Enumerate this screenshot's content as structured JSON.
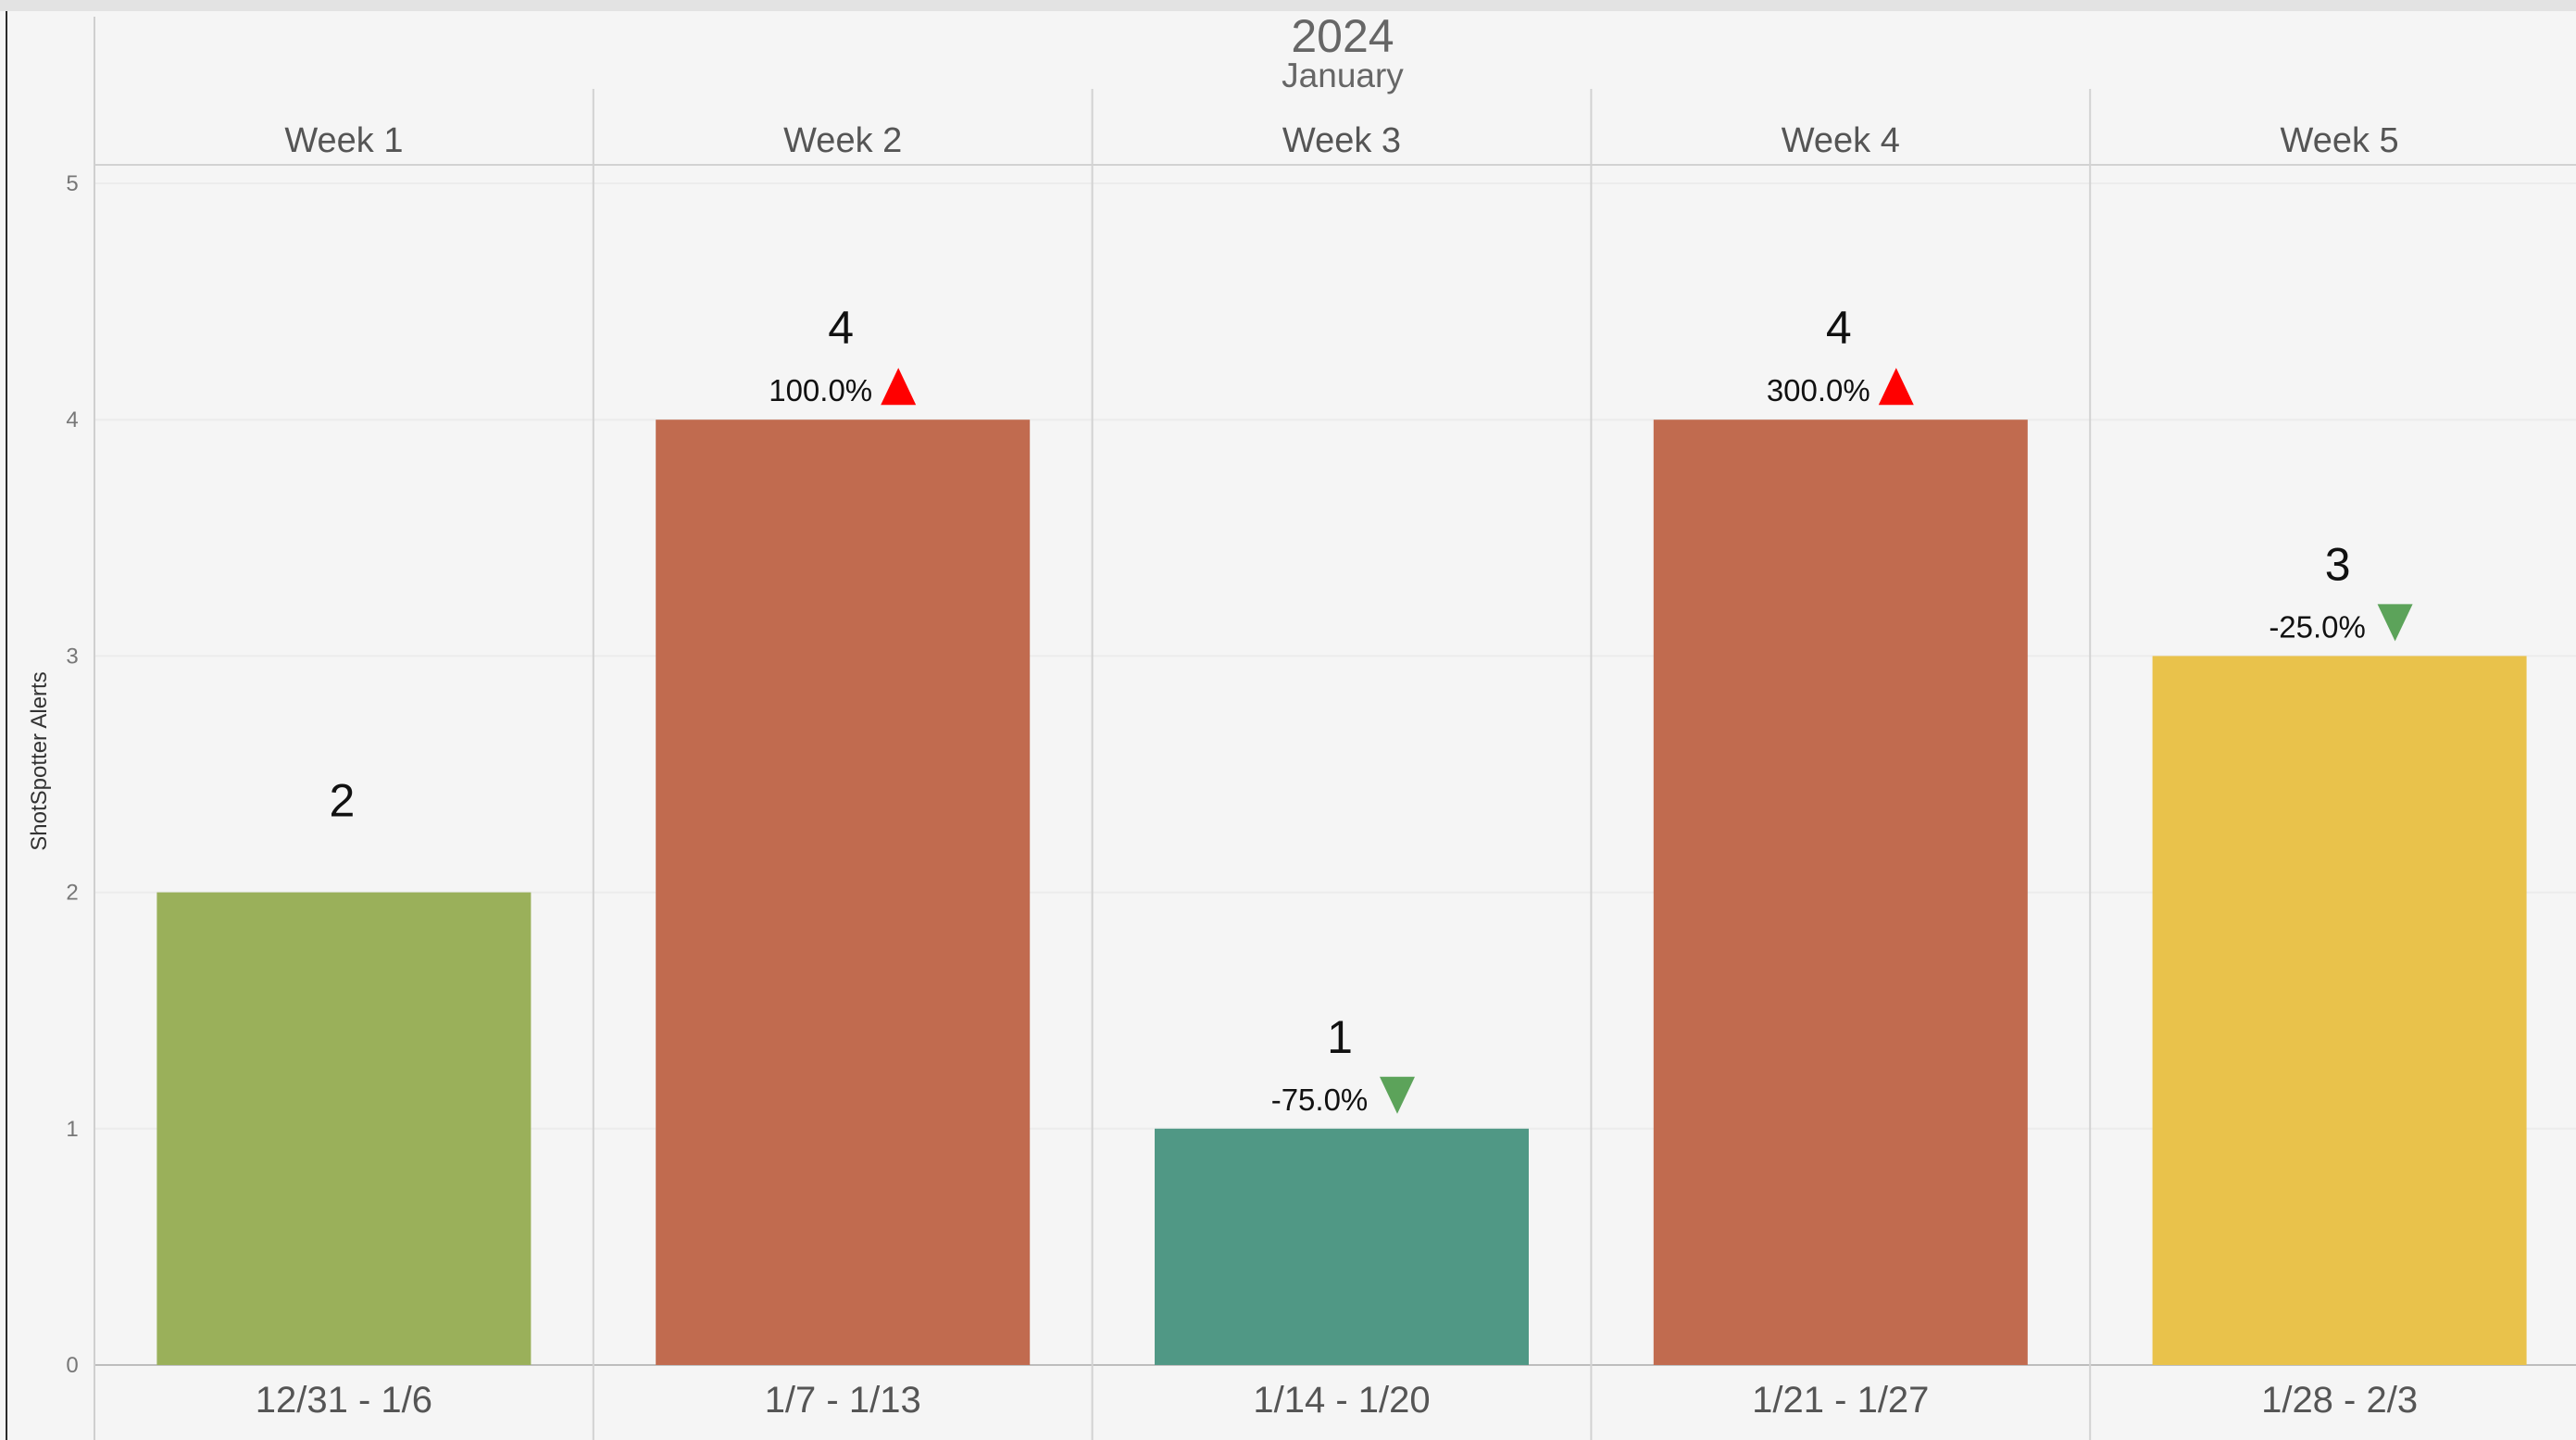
{
  "header": {
    "year": "2024",
    "month": "January"
  },
  "colors": {
    "green": "#9ab05a",
    "red": "#c16b4f",
    "teal": "#509885",
    "yellow": "#e9c24b",
    "arrow_up": "#ff0000",
    "arrow_down": "#5ca35a"
  },
  "chart_data": {
    "type": "bar",
    "ylabel": "ShotSpotter Alerts",
    "ylim": [
      0,
      5
    ],
    "yticks": [
      "0",
      "1",
      "2",
      "3",
      "4",
      "5"
    ],
    "weeks": [
      "Week 1",
      "Week 2",
      "Week 3",
      "Week 4",
      "Week 5"
    ],
    "categories": [
      "12/31 - 1/6",
      "1/7 - 1/13",
      "1/14 - 1/20",
      "1/21 - 1/27",
      "1/28 - 2/3"
    ],
    "values": [
      2,
      4,
      1,
      4,
      3
    ],
    "value_labels": [
      "2",
      "4",
      "1",
      "4",
      "3"
    ],
    "pct_change": [
      "",
      "100.0%",
      "-75.0%",
      "300.0%",
      "-25.0%"
    ],
    "direction": [
      "",
      "up",
      "down",
      "up",
      "down"
    ],
    "bar_colors": [
      "green",
      "red",
      "teal",
      "red",
      "yellow"
    ],
    "grid": true
  }
}
